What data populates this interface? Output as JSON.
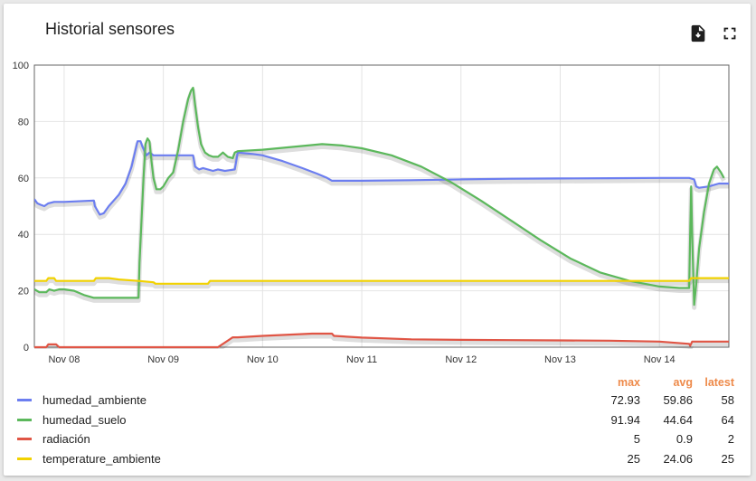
{
  "widget": {
    "title": "Historial sensores",
    "download_icon": "download-file-icon",
    "fullscreen_icon": "fullscreen-icon"
  },
  "legend": {
    "headers": {
      "max": "max",
      "avg": "avg",
      "latest": "latest"
    },
    "items": [
      {
        "name": "humedad_ambiente",
        "color": "#6c7ef0",
        "max": "72.93",
        "avg": "59.86",
        "latest": "58"
      },
      {
        "name": "humedad_suelo",
        "color": "#5cb85c",
        "max": "91.94",
        "avg": "44.64",
        "latest": "64"
      },
      {
        "name": "radiación",
        "color": "#e05545",
        "max": "5",
        "avg": "0.9",
        "latest": "2"
      },
      {
        "name": "temperature_ambiente",
        "color": "#f2d200",
        "max": "25",
        "avg": "24.06",
        "latest": "25"
      }
    ]
  },
  "chart_data": {
    "type": "line",
    "title": "Historial sensores",
    "xlabel": "",
    "ylabel": "",
    "ylim": [
      0,
      100
    ],
    "yticks": [
      "0",
      "20",
      "40",
      "60",
      "80",
      "100"
    ],
    "xlim": [
      7.7,
      14.7
    ],
    "xticks": [
      {
        "x": 8,
        "label": "Nov 08"
      },
      {
        "x": 9,
        "label": "Nov 09"
      },
      {
        "x": 10,
        "label": "Nov 10"
      },
      {
        "x": 11,
        "label": "Nov 11"
      },
      {
        "x": 12,
        "label": "Nov 12"
      },
      {
        "x": 13,
        "label": "Nov 13"
      },
      {
        "x": 14,
        "label": "Nov 14"
      }
    ],
    "grid": true,
    "legend_position": "bottom",
    "series": [
      {
        "name": "humedad_ambiente",
        "color": "#6c7ef0",
        "points": [
          [
            7.7,
            52.5
          ],
          [
            7.73,
            51
          ],
          [
            7.76,
            50.5
          ],
          [
            7.8,
            50
          ],
          [
            7.84,
            51
          ],
          [
            7.9,
            51.5
          ],
          [
            8.0,
            51.5
          ],
          [
            8.3,
            52
          ],
          [
            8.31,
            50
          ],
          [
            8.36,
            47
          ],
          [
            8.4,
            47.5
          ],
          [
            8.45,
            50
          ],
          [
            8.55,
            54
          ],
          [
            8.62,
            58
          ],
          [
            8.68,
            64
          ],
          [
            8.72,
            70
          ],
          [
            8.74,
            73
          ],
          [
            8.77,
            73
          ],
          [
            8.79,
            71
          ],
          [
            8.83,
            68
          ],
          [
            8.86,
            69
          ],
          [
            8.9,
            68
          ],
          [
            9.0,
            68
          ],
          [
            9.15,
            68
          ],
          [
            9.25,
            68
          ],
          [
            9.3,
            68
          ],
          [
            9.32,
            64
          ],
          [
            9.36,
            63
          ],
          [
            9.4,
            63.5
          ],
          [
            9.5,
            62.5
          ],
          [
            9.55,
            63
          ],
          [
            9.62,
            62.5
          ],
          [
            9.72,
            63
          ],
          [
            9.75,
            69
          ],
          [
            9.9,
            68.5
          ],
          [
            10.0,
            68
          ],
          [
            10.2,
            66
          ],
          [
            10.4,
            63.5
          ],
          [
            10.55,
            61.5
          ],
          [
            10.65,
            60
          ],
          [
            10.7,
            59
          ],
          [
            11.0,
            59
          ],
          [
            11.5,
            59.2
          ],
          [
            12.0,
            59.5
          ],
          [
            12.5,
            59.7
          ],
          [
            13.0,
            59.8
          ],
          [
            13.5,
            59.9
          ],
          [
            14.0,
            60
          ],
          [
            14.3,
            60
          ],
          [
            14.35,
            59.5
          ],
          [
            14.37,
            57
          ],
          [
            14.4,
            56.5
          ],
          [
            14.5,
            57
          ],
          [
            14.55,
            57.5
          ],
          [
            14.6,
            58
          ],
          [
            14.7,
            58
          ]
        ]
      },
      {
        "name": "humedad_suelo",
        "color": "#5cb85c",
        "points": [
          [
            7.7,
            20.5
          ],
          [
            7.75,
            19.5
          ],
          [
            7.82,
            19.5
          ],
          [
            7.85,
            20.5
          ],
          [
            7.9,
            20
          ],
          [
            7.95,
            20.5
          ],
          [
            8.0,
            20.5
          ],
          [
            8.1,
            20
          ],
          [
            8.2,
            18.5
          ],
          [
            8.3,
            17.5
          ],
          [
            8.35,
            17.5
          ],
          [
            8.5,
            17.5
          ],
          [
            8.6,
            17.5
          ],
          [
            8.7,
            17.5
          ],
          [
            8.75,
            17.5
          ],
          [
            8.76,
            30
          ],
          [
            8.8,
            60
          ],
          [
            8.82,
            72
          ],
          [
            8.84,
            74
          ],
          [
            8.86,
            73
          ],
          [
            8.88,
            66
          ],
          [
            8.9,
            60
          ],
          [
            8.93,
            56
          ],
          [
            8.97,
            56
          ],
          [
            9.0,
            57
          ],
          [
            9.05,
            60
          ],
          [
            9.1,
            62
          ],
          [
            9.15,
            70
          ],
          [
            9.2,
            80
          ],
          [
            9.25,
            88
          ],
          [
            9.28,
            91
          ],
          [
            9.3,
            92
          ],
          [
            9.32,
            86
          ],
          [
            9.35,
            78
          ],
          [
            9.38,
            72
          ],
          [
            9.42,
            69
          ],
          [
            9.46,
            68
          ],
          [
            9.5,
            67.5
          ],
          [
            9.55,
            67.5
          ],
          [
            9.6,
            69
          ],
          [
            9.65,
            67.5
          ],
          [
            9.7,
            67
          ],
          [
            9.72,
            69
          ],
          [
            9.75,
            69.5
          ],
          [
            10.0,
            70
          ],
          [
            10.3,
            71
          ],
          [
            10.6,
            72
          ],
          [
            10.8,
            71.5
          ],
          [
            11.0,
            70.5
          ],
          [
            11.3,
            68
          ],
          [
            11.6,
            64
          ],
          [
            11.9,
            58.5
          ],
          [
            12.2,
            52
          ],
          [
            12.5,
            45
          ],
          [
            12.8,
            38
          ],
          [
            13.1,
            31.5
          ],
          [
            13.4,
            26.5
          ],
          [
            13.7,
            23.5
          ],
          [
            14.0,
            21.5
          ],
          [
            14.2,
            21
          ],
          [
            14.3,
            21
          ],
          [
            14.31,
            40
          ],
          [
            14.32,
            57
          ],
          [
            14.33,
            40
          ],
          [
            14.35,
            15
          ],
          [
            14.37,
            22
          ],
          [
            14.4,
            35
          ],
          [
            14.45,
            48
          ],
          [
            14.5,
            58
          ],
          [
            14.55,
            63
          ],
          [
            14.58,
            64
          ],
          [
            14.62,
            62
          ],
          [
            14.65,
            60
          ]
        ]
      },
      {
        "name": "radiación",
        "color": "#e05545",
        "points": [
          [
            7.7,
            0
          ],
          [
            7.82,
            0
          ],
          [
            7.84,
            1
          ],
          [
            7.92,
            1
          ],
          [
            7.95,
            0
          ],
          [
            8.3,
            0
          ],
          [
            8.8,
            0
          ],
          [
            9.0,
            0
          ],
          [
            9.3,
            0
          ],
          [
            9.5,
            0
          ],
          [
            9.55,
            0
          ],
          [
            9.7,
            3.5
          ],
          [
            9.75,
            3.5
          ],
          [
            10.0,
            4
          ],
          [
            10.3,
            4.5
          ],
          [
            10.5,
            4.8
          ],
          [
            10.7,
            4.8
          ],
          [
            10.72,
            4
          ],
          [
            11.0,
            3.4
          ],
          [
            11.5,
            2.8
          ],
          [
            12.0,
            2.6
          ],
          [
            12.5,
            2.5
          ],
          [
            13.0,
            2.4
          ],
          [
            13.5,
            2.3
          ],
          [
            14.0,
            2
          ],
          [
            14.3,
            1.2
          ],
          [
            14.31,
            0.5
          ],
          [
            14.33,
            2
          ],
          [
            14.5,
            2
          ],
          [
            14.7,
            2
          ]
        ]
      },
      {
        "name": "temperature_ambiente",
        "color": "#f2d200",
        "points": [
          [
            7.7,
            23.5
          ],
          [
            7.82,
            23.5
          ],
          [
            7.84,
            24.5
          ],
          [
            7.9,
            24.5
          ],
          [
            7.92,
            23.5
          ],
          [
            8.0,
            23.5
          ],
          [
            8.3,
            23.5
          ],
          [
            8.32,
            24.5
          ],
          [
            8.45,
            24.5
          ],
          [
            8.55,
            24
          ],
          [
            8.75,
            23.5
          ],
          [
            8.9,
            23
          ],
          [
            8.92,
            22.5
          ],
          [
            9.0,
            22.5
          ],
          [
            9.3,
            22.5
          ],
          [
            9.45,
            22.5
          ],
          [
            9.47,
            23.5
          ],
          [
            9.6,
            23.5
          ],
          [
            10.0,
            23.5
          ],
          [
            11.0,
            23.5
          ],
          [
            12.0,
            23.5
          ],
          [
            13.0,
            23.5
          ],
          [
            14.0,
            23.5
          ],
          [
            14.3,
            23.5
          ],
          [
            14.32,
            24.5
          ],
          [
            14.5,
            24.5
          ],
          [
            14.7,
            24.5
          ]
        ]
      }
    ]
  }
}
